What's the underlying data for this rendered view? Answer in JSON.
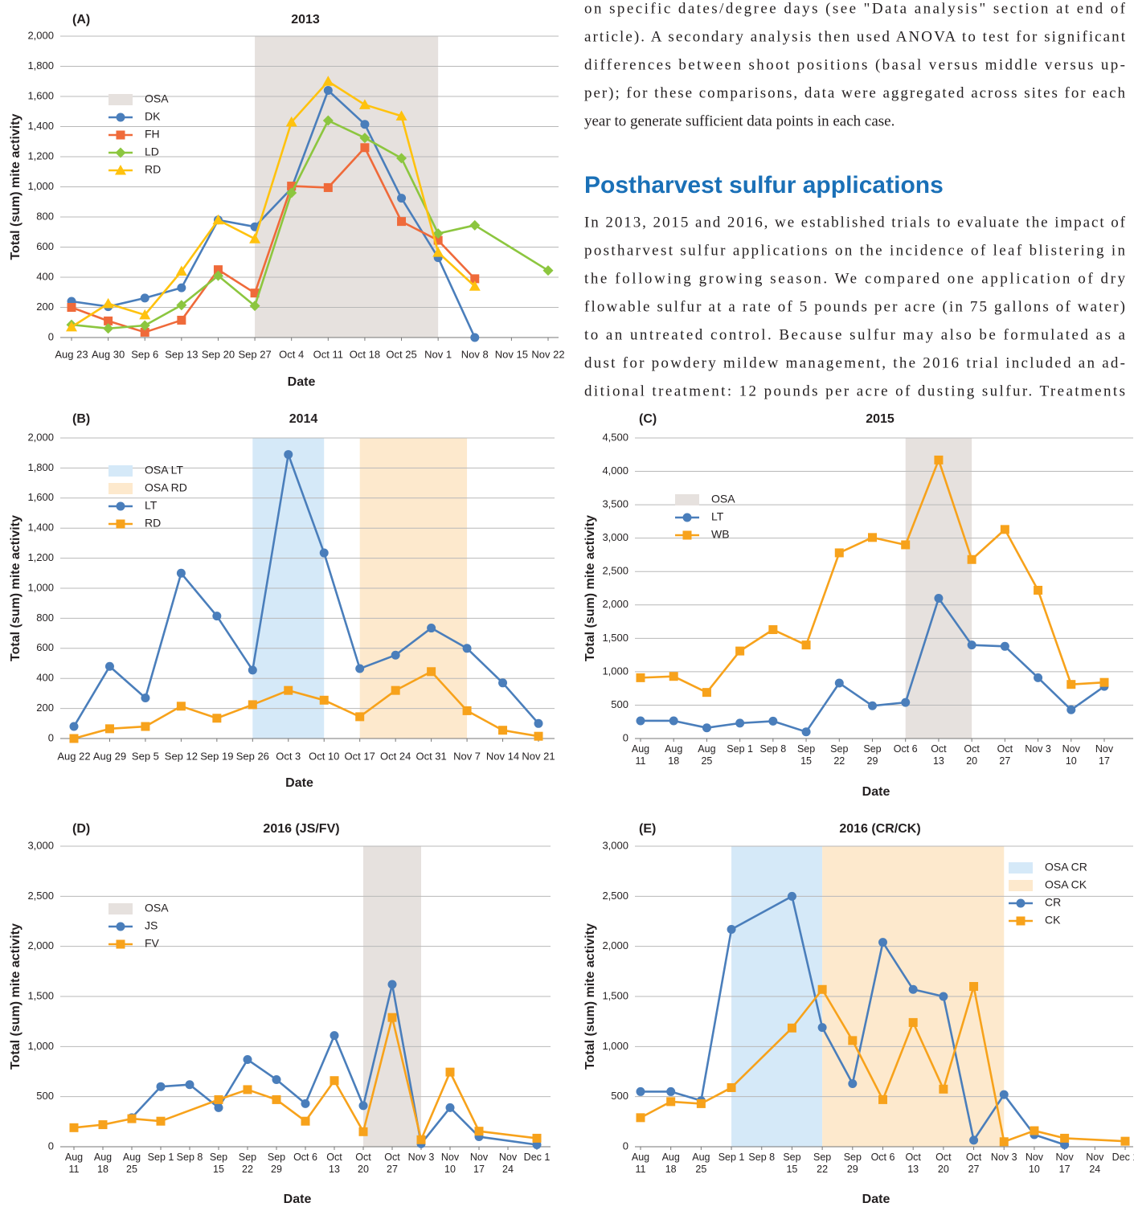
{
  "text": {
    "paragraph1": [
      "on specific dates/degree days (see \"Data analysis\" section at end of",
      "article). A secondary analysis then used ANOVA to test for significant",
      "differences between shoot positions (basal versus middle versus up-",
      "per); for these comparisons, data were aggregated across sites for each",
      "year to generate sufficient data points in each case."
    ],
    "heading": "Postharvest sulfur applications",
    "paragraph2": [
      "In 2013, 2015 and 2016, we established trials to evaluate the impact of",
      "postharvest sulfur applications on the incidence of leaf blistering in",
      "the following growing season. We compared one application of dry",
      "flowable sulfur at a rate of 5 pounds per acre (in 75 gallons of water)",
      "to an untreated control. Because sulfur may also be formulated as a",
      "dust for powdery mildew management, the 2016 trial included an ad-",
      "ditional treatment: 12 pounds per acre of dusting sulfur. Treatments"
    ]
  },
  "chart_data": [
    {
      "type": "line",
      "panel": "(A)",
      "title": "2013",
      "y_label": "Total (sum) mite activity",
      "x_label": "Date",
      "categories": [
        "Aug 23",
        "Aug 30",
        "Sep 6",
        "Sep 13",
        "Sep 20",
        "Sep 27",
        "Oct 4",
        "Oct 11",
        "Oct 18",
        "Oct 25",
        "Nov 1",
        "Nov 8",
        "Nov 15",
        "Nov 22"
      ],
      "bands": [
        {
          "name": "OSA",
          "color": "#e6e1de",
          "from": "Sep 27",
          "to": "Nov 1"
        }
      ],
      "series": [
        {
          "name": "DK",
          "color": "#4a7ebb",
          "marker": "circle",
          "values": [
            240,
            205,
            262,
            330,
            780,
            735,
            990,
            1640,
            1415,
            925,
            530,
            0,
            null,
            null
          ]
        },
        {
          "name": "FH",
          "color": "#ef6a3a",
          "marker": "square",
          "values": [
            200,
            110,
            35,
            115,
            450,
            295,
            1005,
            995,
            1260,
            770,
            645,
            390,
            null,
            null
          ]
        },
        {
          "name": "LD",
          "color": "#8cc63f",
          "marker": "diamond",
          "x": [
            "Aug 23",
            "Aug 30",
            "Sep 6",
            "Sep 13",
            "Sep 20",
            "Sep 27",
            "Oct 4",
            "Oct 11",
            "Oct 18",
            "Oct 25",
            "Nov 1",
            "Nov 8",
            "Nov 22"
          ],
          "values": [
            85,
            60,
            80,
            215,
            410,
            210,
            960,
            1440,
            1325,
            1190,
            690,
            745,
            445
          ]
        },
        {
          "name": "RD",
          "color": "#ffc20e",
          "marker": "triangle",
          "values": [
            70,
            225,
            150,
            440,
            780,
            655,
            1430,
            1700,
            1545,
            1470,
            565,
            340,
            null,
            null
          ]
        }
      ],
      "ylim": [
        0,
        2000
      ],
      "yticks": [
        0,
        200,
        400,
        600,
        800,
        {
          "value": 1000,
          "label": "1,000"
        },
        {
          "value": 1200,
          "label": "1,200"
        },
        {
          "value": 1400,
          "label": "1,400"
        },
        {
          "value": 1600,
          "label": "1,600"
        },
        {
          "value": 1800,
          "label": "1,800"
        },
        {
          "value": 2000,
          "label": "2,000"
        }
      ],
      "grid": true,
      "legend": "upper left"
    },
    {
      "type": "line",
      "panel": "(B)",
      "title": "2014",
      "y_label": "Total (sum) mite activity",
      "x_label": "Date",
      "categories": [
        "Aug 22",
        "Aug 29",
        "Sep 5",
        "Sep 12",
        "Sep 19",
        "Sep 26",
        "Oct 3",
        "Oct 10",
        "Oct 17",
        "Oct 24",
        "Oct 31",
        "Nov 7",
        "Nov 14",
        "Nov 21"
      ],
      "bands": [
        {
          "name": "OSA LT",
          "color": "#d5e9f8",
          "from": "Sep 26",
          "to": "Oct 10"
        },
        {
          "name": "OSA RD",
          "color": "#fde9cd",
          "from": "Oct 17",
          "to": "Nov 7"
        }
      ],
      "series": [
        {
          "name": "LT",
          "color": "#4a7ebb",
          "marker": "circle",
          "values": [
            80,
            480,
            270,
            1100,
            815,
            455,
            1890,
            1235,
            465,
            555,
            735,
            600,
            370,
            100
          ]
        },
        {
          "name": "RD",
          "color": "#f7a21b",
          "marker": "square",
          "values": [
            0,
            65,
            80,
            215,
            135,
            225,
            320,
            255,
            145,
            320,
            445,
            185,
            55,
            15
          ]
        }
      ],
      "ylim": [
        0,
        2000
      ],
      "yticks": [
        0,
        200,
        400,
        600,
        800,
        {
          "value": 1000,
          "label": "1,000"
        },
        {
          "value": 1200,
          "label": "1,200"
        },
        {
          "value": 1400,
          "label": "1,400"
        },
        {
          "value": 1600,
          "label": "1,600"
        },
        {
          "value": 1800,
          "label": "1,800"
        },
        {
          "value": 2000,
          "label": "2,000"
        }
      ],
      "grid": true,
      "legend": "upper left"
    },
    {
      "type": "line",
      "panel": "(C)",
      "title": "2015",
      "y_label": "Total (sum) mite activity",
      "x_label": "Date",
      "categories": [
        "Aug 11",
        "Aug 18",
        "Aug 25",
        "Sep 1",
        "Sep 8",
        "Sep 15",
        "Sep 22",
        "Sep 29",
        "Oct 6",
        "Oct 13",
        "Oct 20",
        "Oct 27",
        "Nov 3",
        "Nov 10",
        "Nov 17"
      ],
      "bands": [
        {
          "name": "OSA",
          "color": "#e6e1de",
          "from": "Oct 6",
          "to": "Oct 20"
        }
      ],
      "series": [
        {
          "name": "LT",
          "color": "#4a7ebb",
          "marker": "circle",
          "values": [
            265,
            265,
            160,
            230,
            260,
            100,
            830,
            490,
            540,
            2100,
            1400,
            1380,
            910,
            430,
            780
          ]
        },
        {
          "name": "WB",
          "color": "#f7a21b",
          "marker": "square",
          "values": [
            910,
            930,
            690,
            1310,
            1630,
            1400,
            2780,
            3010,
            2900,
            4170,
            2680,
            3130,
            2220,
            810,
            840
          ]
        }
      ],
      "ylim": [
        0,
        4500
      ],
      "yticks": [
        0,
        500,
        {
          "value": 1000,
          "label": "1,000"
        },
        {
          "value": 1500,
          "label": "1,500"
        },
        {
          "value": 2000,
          "label": "2,000"
        },
        {
          "value": 2500,
          "label": "2,500"
        },
        {
          "value": 3000,
          "label": "3,000"
        },
        {
          "value": 3500,
          "label": "3,500"
        },
        {
          "value": 4000,
          "label": "4,000"
        },
        {
          "value": 4500,
          "label": "4,500"
        }
      ],
      "grid": true,
      "legend": "upper left"
    },
    {
      "type": "line",
      "panel": "(D)",
      "title": "2016 (JS/FV)",
      "y_label": "Total (sum) mite activity",
      "x_label": "Date",
      "categories": [
        "Aug 11",
        "Aug 18",
        "Aug 25",
        "Sep 1",
        "Sep 8",
        "Sep 15",
        "Sep 22",
        "Sep 29",
        "Oct 6",
        "Oct 13",
        "Oct 20",
        "Oct 27",
        "Nov 3",
        "Nov 10",
        "Nov 17",
        "Nov 24",
        "Dec 1"
      ],
      "bands": [
        {
          "name": "OSA",
          "color": "#e6e1de",
          "from": "Oct 20",
          "to": "Nov 3"
        }
      ],
      "series": [
        {
          "name": "JS",
          "color": "#4a7ebb",
          "marker": "circle",
          "x": [
            "Aug 25",
            "Sep 1",
            "Sep 8",
            "Sep 15",
            "Sep 22",
            "Sep 29",
            "Oct 6",
            "Oct 13",
            "Oct 20",
            "Oct 27",
            "Nov 3",
            "Nov 10",
            "Nov 17",
            "Dec 1"
          ],
          "values": [
            290,
            600,
            620,
            390,
            870,
            670,
            430,
            1110,
            410,
            1620,
            30,
            390,
            100,
            20
          ]
        },
        {
          "name": "FV",
          "color": "#f7a21b",
          "marker": "square",
          "x": [
            "Aug 11",
            "Aug 18",
            "Aug 25",
            "Sep 1",
            "Sep 15",
            "Sep 22",
            "Sep 29",
            "Oct 6",
            "Oct 13",
            "Oct 20",
            "Oct 27",
            "Nov 3",
            "Nov 10",
            "Nov 17",
            "Dec 1"
          ],
          "values": [
            190,
            220,
            280,
            255,
            470,
            570,
            470,
            255,
            660,
            150,
            1290,
            70,
            745,
            155,
            85
          ]
        }
      ],
      "ylim": [
        0,
        3000
      ],
      "yticks": [
        0,
        500,
        {
          "value": 1000,
          "label": "1,000"
        },
        {
          "value": 1500,
          "label": "1,500"
        },
        {
          "value": 2000,
          "label": "2,000"
        },
        {
          "value": 2500,
          "label": "2,500"
        },
        {
          "value": 3000,
          "label": "3,000"
        }
      ],
      "grid": true,
      "legend": "upper left"
    },
    {
      "type": "line",
      "panel": "(E)",
      "title": "2016 (CR/CK)",
      "y_label": "Total (sum) mite activity",
      "x_label": "Date",
      "categories": [
        "Aug 11",
        "Aug 18",
        "Aug 25",
        "Sep 1",
        "Sep 8",
        "Sep 15",
        "Sep 22",
        "Sep 29",
        "Oct 6",
        "Oct 13",
        "Oct 20",
        "Oct 27",
        "Nov 3",
        "Nov 10",
        "Nov 17",
        "Nov 24",
        "Dec 1"
      ],
      "bands": [
        {
          "name": "OSA CR",
          "color": "#d5e9f8",
          "from": "Sep 1",
          "to": "Sep 22"
        },
        {
          "name": "OSA CK",
          "color": "#fde9cd",
          "from": "Sep 22",
          "to": "Nov 3"
        }
      ],
      "series": [
        {
          "name": "CR",
          "color": "#4a7ebb",
          "marker": "circle",
          "x": [
            "Aug 11",
            "Aug 18",
            "Aug 25",
            "Sep 1",
            "Sep 15",
            "Sep 22",
            "Sep 29",
            "Oct 6",
            "Oct 13",
            "Oct 20",
            "Oct 27",
            "Nov 3",
            "Nov 10",
            "Nov 17"
          ],
          "values": [
            550,
            550,
            460,
            2170,
            2500,
            1190,
            630,
            2040,
            1570,
            1500,
            65,
            520,
            120,
            20
          ]
        },
        {
          "name": "CK",
          "color": "#f7a21b",
          "marker": "square",
          "x": [
            "Aug 11",
            "Aug 18",
            "Aug 25",
            "Sep 1",
            "Sep 15",
            "Sep 22",
            "Sep 29",
            "Oct 6",
            "Oct 13",
            "Oct 20",
            "Oct 27",
            "Nov 3",
            "Nov 10",
            "Nov 17",
            "Dec 1"
          ],
          "values": [
            290,
            450,
            430,
            590,
            1185,
            1570,
            1060,
            470,
            1240,
            575,
            1600,
            50,
            160,
            85,
            55
          ]
        }
      ],
      "ylim": [
        0,
        3000
      ],
      "yticks": [
        0,
        500,
        {
          "value": 1000,
          "label": "1,000"
        },
        {
          "value": 1500,
          "label": "1,500"
        },
        {
          "value": 2000,
          "label": "2,000"
        },
        {
          "value": 2500,
          "label": "2,500"
        },
        {
          "value": 3000,
          "label": "3,000"
        }
      ],
      "grid": true,
      "legend": "upper right"
    }
  ]
}
